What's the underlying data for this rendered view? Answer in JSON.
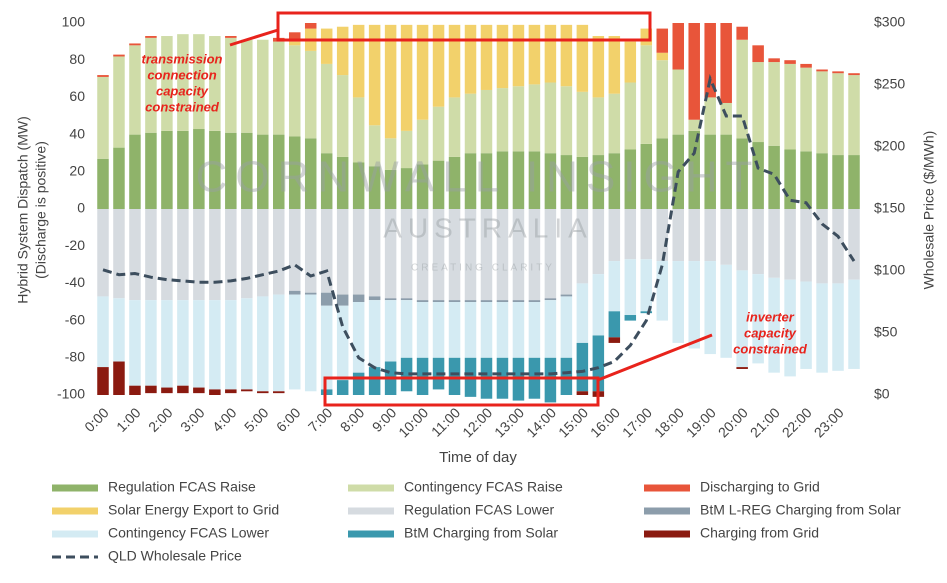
{
  "chart_data": {
    "type": "bar",
    "y_label": "Hybrid System Dispatch (MW)",
    "y_label_note": "(Discharge is positive)",
    "y2_label": "Wholesale Price ($/MWh)",
    "x_label": "Time of day",
    "categories": [
      "0:00",
      null,
      "1:00",
      null,
      "2:00",
      null,
      "3:00",
      null,
      "4:00",
      null,
      "5:00",
      null,
      "6:00",
      null,
      "7:00",
      null,
      "8:00",
      null,
      "9:00",
      null,
      "10:00",
      null,
      "11:00",
      null,
      "12:00",
      null,
      "13:00",
      null,
      "14:00",
      null,
      "15:00",
      null,
      "16:00",
      null,
      "17:00",
      null,
      "18:00",
      null,
      "19:00",
      null,
      "20:00",
      null,
      "21:00",
      null,
      "22:00",
      null,
      "23:00",
      null
    ],
    "ylim": [
      -100,
      100
    ],
    "yticks": [
      -100,
      -80,
      -60,
      -40,
      -20,
      0,
      20,
      40,
      60,
      80,
      100
    ],
    "y2lim": [
      0,
      300
    ],
    "y2ticks": [
      {
        "value": 0,
        "label": "$0"
      },
      {
        "value": 50,
        "label": "$50"
      },
      {
        "value": 100,
        "label": "$100"
      },
      {
        "value": 150,
        "label": "$150"
      },
      {
        "value": 200,
        "label": "$200"
      },
      {
        "value": 250,
        "label": "$250"
      },
      {
        "value": 300,
        "label": "$300"
      }
    ],
    "series": [
      {
        "name": "Regulation FCAS Raise",
        "color": "#8fb36a",
        "values": [
          27,
          33,
          40,
          41,
          42,
          42,
          43,
          42,
          41,
          41,
          40,
          40,
          39,
          38,
          30,
          28,
          25,
          23,
          21,
          22,
          24,
          26,
          28,
          30,
          30,
          31,
          31,
          31,
          30,
          29,
          28,
          29,
          30,
          32,
          35,
          38,
          40,
          42,
          40,
          40,
          38,
          36,
          34,
          32,
          31,
          30,
          29,
          29
        ]
      },
      {
        "name": "Contingency FCAS Raise",
        "color": "#cfdca8",
        "values": [
          44,
          49,
          48,
          51,
          51,
          52,
          51,
          51,
          51,
          50,
          51,
          50,
          49,
          47,
          48,
          44,
          35,
          22,
          17,
          20,
          24,
          29,
          32,
          32,
          34,
          34,
          35,
          36,
          38,
          37,
          35,
          31,
          32,
          36,
          53,
          42,
          35,
          6,
          20,
          17,
          53,
          43,
          45,
          46,
          45,
          44,
          44,
          43
        ]
      },
      {
        "name": "Solar Energy Export to Grid",
        "color": "#f2d16b",
        "values": [
          0,
          0,
          0,
          0,
          0,
          0,
          0,
          0,
          0,
          0,
          0,
          0,
          2,
          12,
          19,
          26,
          39,
          54,
          61,
          57,
          51,
          44,
          39,
          37,
          35,
          34,
          33,
          32,
          31,
          33,
          36,
          33,
          31,
          22,
          9,
          4,
          0,
          0,
          0,
          0,
          0,
          0,
          0,
          0,
          0,
          0,
          0,
          0
        ]
      },
      {
        "name": "Discharging to Grid",
        "color": "#e8553a",
        "values": [
          1,
          1,
          1,
          1,
          0,
          0,
          0,
          0,
          1,
          0,
          0,
          2,
          5,
          3,
          0,
          0,
          0,
          0,
          0,
          0,
          0,
          0,
          0,
          0,
          0,
          0,
          0,
          0,
          0,
          0,
          0,
          0,
          0,
          0,
          0,
          13,
          25,
          52,
          40,
          43,
          7,
          9,
          2,
          2,
          2,
          1,
          1,
          1
        ]
      },
      {
        "name": "Regulation FCAS Lower",
        "color": "#d6dbe0",
        "values": [
          -47,
          -48,
          -49,
          -49,
          -49,
          -49,
          -49,
          -49,
          -49,
          -48,
          -47,
          -46,
          -44,
          -45,
          -45,
          -46,
          -46,
          -47,
          -48,
          -48,
          -49,
          -49,
          -49,
          -49,
          -49,
          -49,
          -49,
          -49,
          -48,
          -46,
          -40,
          -35,
          -28,
          -27,
          -27,
          -28,
          -28,
          -28,
          -28,
          -30,
          -33,
          -35,
          -37,
          -38,
          -39,
          -40,
          -40,
          -38
        ]
      },
      {
        "name": "BtM L-REG Charging from Solar",
        "color": "#8c9dab",
        "values": [
          0,
          0,
          0,
          0,
          0,
          0,
          0,
          0,
          0,
          0,
          0,
          0,
          -2,
          -1,
          -7,
          -6,
          -4,
          -2,
          -1,
          -1,
          -1,
          -1,
          -1,
          -1,
          -1,
          -1,
          -1,
          -1,
          -1,
          -1,
          0,
          0,
          0,
          0,
          0,
          0,
          0,
          0,
          0,
          0,
          0,
          0,
          0,
          0,
          0,
          0,
          0,
          0
        ]
      },
      {
        "name": "Contingency FCAS Lower",
        "color": "#d4ebf3",
        "values": [
          -38,
          -34,
          -46,
          -46,
          -47,
          -46,
          -47,
          -48,
          -48,
          -49,
          -51,
          -52,
          -51,
          -52,
          -45,
          -40,
          -38,
          -36,
          -33,
          -31,
          -30,
          -30,
          -30,
          -30,
          -30,
          -30,
          -30,
          -30,
          -31,
          -33,
          -32,
          -33,
          -27,
          -30,
          -28,
          -32,
          -44,
          -47,
          -50,
          -50,
          -52,
          -48,
          -51,
          -52,
          -47,
          -48,
          -47,
          -48
        ]
      },
      {
        "name": "BtM Charging from Solar",
        "color": "#3a98ad",
        "values": [
          0,
          0,
          0,
          0,
          0,
          0,
          0,
          0,
          0,
          0,
          0,
          0,
          0,
          0,
          -3,
          -8,
          -12,
          -15,
          -18,
          -18,
          -20,
          -17,
          -20,
          -21,
          -22,
          -22,
          -23,
          -22,
          -24,
          -20,
          -26,
          -30,
          -14,
          -3,
          -1,
          0,
          0,
          0,
          0,
          0,
          0,
          0,
          0,
          0,
          0,
          0,
          0,
          0
        ]
      },
      {
        "name": "Charging from Grid",
        "color": "#8b1a10",
        "values": [
          -15,
          -18,
          -5,
          -4,
          -3,
          -4,
          -3,
          -3,
          -2,
          -1,
          -1,
          -1,
          0,
          0,
          0,
          0,
          0,
          0,
          0,
          0,
          0,
          0,
          0,
          0,
          0,
          0,
          0,
          0,
          0,
          0,
          -2,
          -3,
          -3,
          0,
          0,
          0,
          0,
          0,
          0,
          0,
          -1,
          0,
          0,
          0,
          0,
          0,
          0,
          0
        ]
      },
      {
        "name": "QLD Wholesale Price",
        "color": "#3d4e5e",
        "type": "line",
        "axis": "y2",
        "values": [
          101,
          97,
          98,
          95,
          93,
          92,
          91,
          91,
          92,
          94,
          97,
          100,
          105,
          96,
          100,
          55,
          30,
          22,
          18,
          17,
          17,
          17,
          17,
          17,
          17,
          17,
          17,
          17,
          17,
          18,
          19,
          22,
          27,
          40,
          60,
          105,
          180,
          195,
          255,
          225,
          225,
          183,
          178,
          157,
          155,
          138,
          128,
          108
        ]
      }
    ],
    "annotations": [
      {
        "lines": [
          "transmission",
          "connection",
          "capacity",
          "constrained"
        ]
      },
      {
        "lines": [
          "inverter",
          "capacity",
          "constrained"
        ]
      }
    ],
    "watermark": [
      "CORNWALL INSIGHT",
      "AUSTRALIA",
      "CREATING CLARITY"
    ]
  }
}
